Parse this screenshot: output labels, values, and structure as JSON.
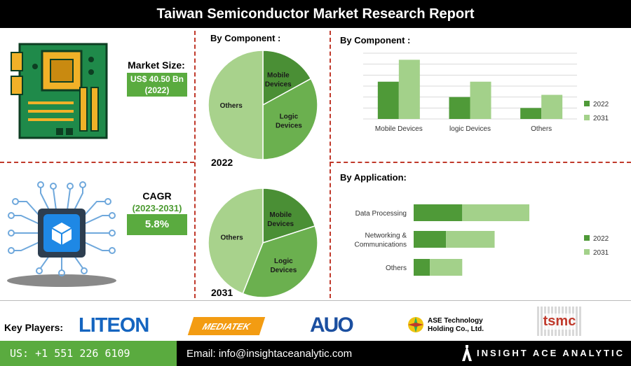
{
  "title": "Taiwan Semiconductor Market Research Report",
  "market_size": {
    "label": "Market Size:",
    "value": "US$ 40.50 Bn",
    "year": "(2022)"
  },
  "cagr": {
    "label": "CAGR",
    "period": "(2023-2031)",
    "value": "5.8%"
  },
  "pie_section": {
    "title": "By Component :",
    "year_2022": "2022",
    "year_2031": "2031"
  },
  "bar_component_title": "By Component :",
  "bar_application_title": "By Application:",
  "key_players": {
    "label": "Key Players:",
    "logos": [
      "LITEON",
      "MEDIATEK",
      "AUO",
      "ASE Technology Holding Co., Ltd.",
      "tsmc"
    ]
  },
  "footer": {
    "phone": "US: +1 551 226 6109",
    "email": "Email: info@insightaceanalytic.com",
    "brand": "INSIGHT ACE ANALYTIC"
  },
  "colors": {
    "dark_green": "#4f9a38",
    "light_green": "#a3d18a",
    "pie_dark": "#4a8f35",
    "pie_mid": "#6bb04f",
    "pie_light": "#a8d28c"
  },
  "chart_data": [
    {
      "type": "pie",
      "title": "2022",
      "categories": [
        "Mobile Devices",
        "Logic Devices",
        "Others"
      ],
      "values": [
        17,
        33,
        50
      ]
    },
    {
      "type": "pie",
      "title": "2031",
      "categories": [
        "Mobile Devices",
        "Logic Devices",
        "Others"
      ],
      "values": [
        20,
        36,
        44
      ]
    },
    {
      "type": "bar",
      "title": "By Component :",
      "categories": [
        "Mobile Devices",
        "logic Devices",
        "Others"
      ],
      "series": [
        {
          "name": "2022",
          "values": [
            34,
            20,
            10
          ]
        },
        {
          "name": "2031",
          "values": [
            54,
            34,
            22
          ]
        }
      ],
      "ylim": [
        0,
        60
      ],
      "grid": true,
      "legend": "right"
    },
    {
      "type": "bar",
      "title": "By Application:",
      "orientation": "horizontal",
      "stacked": true,
      "categories": [
        "Data Processing",
        "Networking & Communications",
        "Others"
      ],
      "series": [
        {
          "name": "2022",
          "values": [
            42,
            28,
            14
          ]
        },
        {
          "name": "2031",
          "values": [
            58,
            42,
            28
          ]
        }
      ],
      "legend": "right"
    }
  ]
}
